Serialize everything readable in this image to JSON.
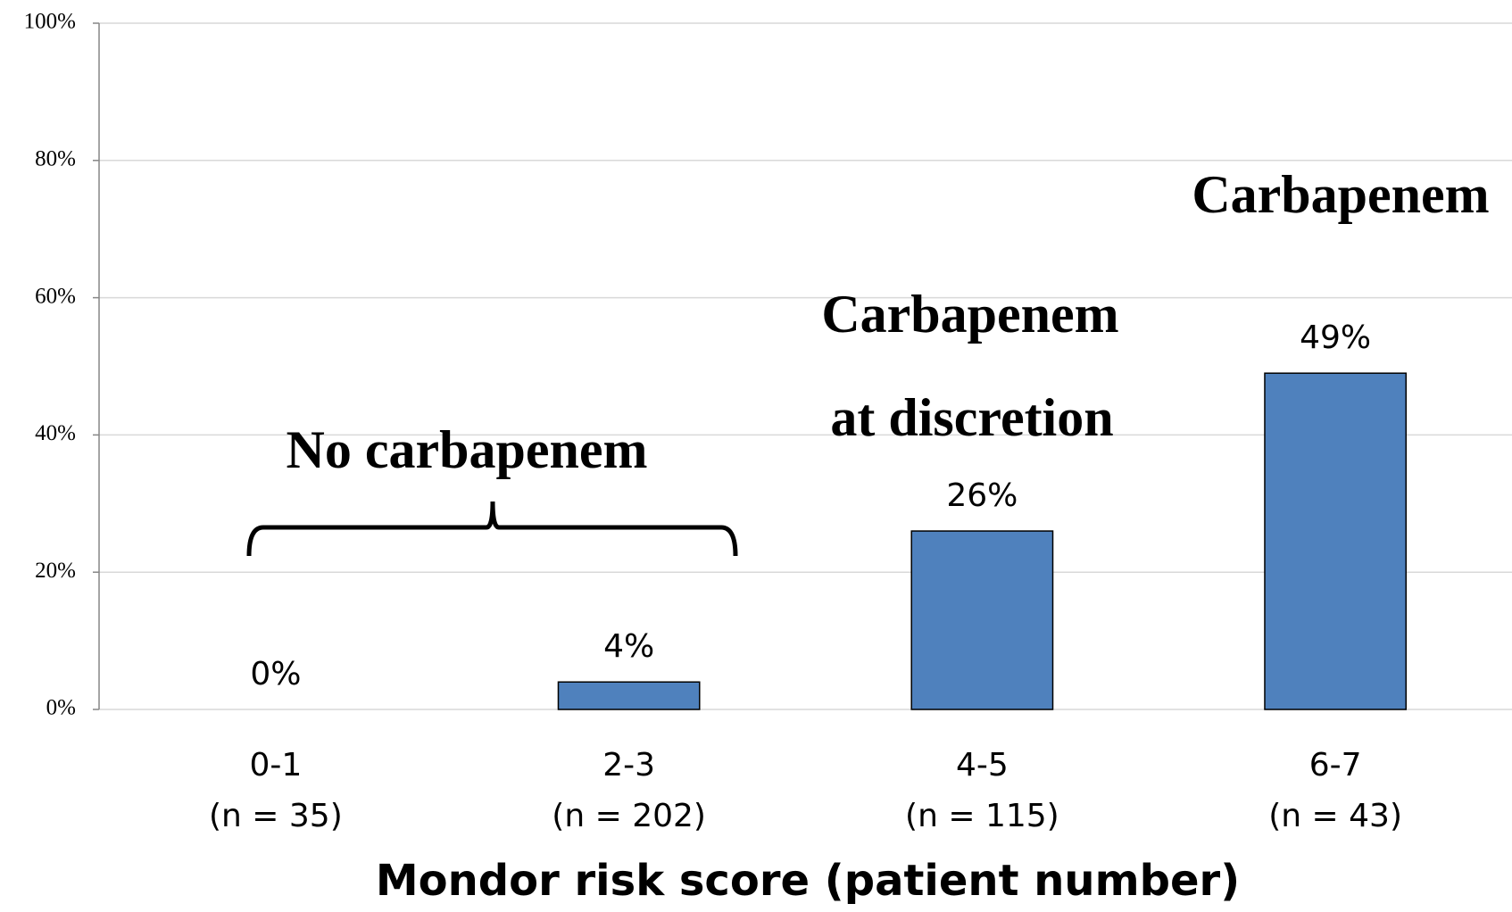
{
  "chart_data": {
    "type": "bar",
    "categories": [
      "0-1",
      "2-3",
      "4-5",
      "6-7"
    ],
    "category_notes": [
      "(n = 35)",
      "(n = 202)",
      "(n = 115)",
      "(n = 43)"
    ],
    "values": [
      0,
      4,
      26,
      49
    ],
    "value_labels": [
      "0%",
      "4%",
      "26%",
      "49%"
    ],
    "color": "#4f81bd",
    "x_label": "Mondor risk score (patient number)",
    "ylim": [
      0,
      100
    ],
    "yticks": [
      {
        "value": 0,
        "label": "0%"
      },
      {
        "value": 20,
        "label": "20%"
      },
      {
        "value": 40,
        "label": "40%"
      },
      {
        "value": 60,
        "label": "60%"
      },
      {
        "value": 80,
        "label": "80%"
      },
      {
        "value": 100,
        "label": "100%"
      }
    ],
    "grid": true,
    "annotations": [
      "No carbapenem",
      "Carbapenem",
      "at discretion",
      "Carbapenem"
    ]
  }
}
